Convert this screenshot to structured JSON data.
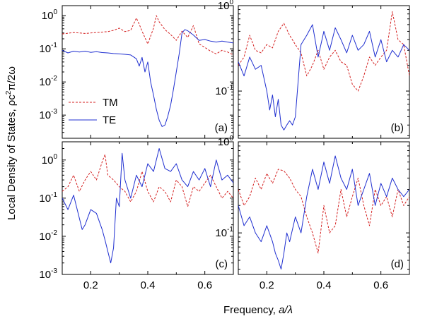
{
  "chart_data": {
    "type": "line",
    "xlabel": "Frequency, a/λ",
    "xlabel_parts": [
      "Frequency, ",
      "a/λ"
    ],
    "ylabel": "Local Density of States, ρc²π/2ω",
    "ylabel_parts": [
      "Local Density of States, ρc",
      "2",
      "π/2ω"
    ],
    "xlim": [
      0.1,
      0.7
    ],
    "xticks": [
      "0.2",
      "0.4",
      "0.6"
    ],
    "legend": {
      "location": "left",
      "entries": [
        "TM",
        "TE"
      ]
    },
    "series_styles": [
      {
        "name": "TM",
        "color": "#d42020",
        "dash": "dashed"
      },
      {
        "name": "TE",
        "color": "#1f2fd0",
        "dash": "solid"
      }
    ],
    "panels": [
      {
        "label": "(a)",
        "yscale": "log",
        "ylim": [
          0.0002,
          2
        ],
        "yticks": [
          {
            "value": 1,
            "label": "10",
            "exp": "0"
          },
          {
            "value": 0.1,
            "label": "10",
            "exp": "-1"
          },
          {
            "value": 0.01,
            "label": "10",
            "exp": "-2"
          },
          {
            "value": 0.001,
            "label": "10",
            "exp": "-3"
          }
        ],
        "series": [
          {
            "name": "TM",
            "x": [
              0.1,
              0.14,
              0.18,
              0.22,
              0.26,
              0.28,
              0.3,
              0.32,
              0.34,
              0.35,
              0.36,
              0.37,
              0.38,
              0.4,
              0.42,
              0.43,
              0.44,
              0.46,
              0.48,
              0.5,
              0.52,
              0.54,
              0.56,
              0.58,
              0.6,
              0.62,
              0.64,
              0.66,
              0.68,
              0.7
            ],
            "y": [
              0.28,
              0.31,
              0.29,
              0.31,
              0.33,
              0.36,
              0.42,
              0.33,
              0.36,
              0.55,
              0.85,
              0.55,
              0.34,
              0.14,
              0.42,
              1.0,
              0.65,
              0.38,
              0.27,
              0.18,
              0.34,
              0.22,
              0.5,
              0.14,
              0.11,
              0.085,
              0.07,
              0.09,
              0.08,
              0.065
            ]
          },
          {
            "name": "TE",
            "x": [
              0.1,
              0.12,
              0.14,
              0.16,
              0.18,
              0.2,
              0.22,
              0.24,
              0.26,
              0.28,
              0.3,
              0.32,
              0.34,
              0.36,
              0.37,
              0.38,
              0.39,
              0.4,
              0.41,
              0.42,
              0.43,
              0.44,
              0.45,
              0.46,
              0.47,
              0.48,
              0.49,
              0.5,
              0.51,
              0.52,
              0.53,
              0.54,
              0.56,
              0.58,
              0.6,
              0.62,
              0.64,
              0.66,
              0.68,
              0.7
            ],
            "y": [
              0.09,
              0.075,
              0.085,
              0.08,
              0.085,
              0.078,
              0.082,
              0.077,
              0.075,
              0.072,
              0.07,
              0.068,
              0.065,
              0.05,
              0.03,
              0.055,
              0.02,
              0.04,
              0.01,
              0.004,
              0.0015,
              0.0007,
              0.00045,
              0.0005,
              0.0009,
              0.002,
              0.006,
              0.02,
              0.07,
              0.3,
              0.38,
              0.35,
              0.26,
              0.18,
              0.19,
              0.17,
              0.16,
              0.17,
              0.16,
              0.15
            ]
          }
        ]
      },
      {
        "label": "(b)",
        "yscale": "log",
        "ylim": [
          0.028,
          1
        ],
        "yticks": [
          {
            "value": 1,
            "label": "10",
            "exp": "0"
          },
          {
            "value": 0.1,
            "label": "10",
            "exp": "-1"
          }
        ],
        "series": [
          {
            "name": "TM",
            "x": [
              0.1,
              0.12,
              0.14,
              0.16,
              0.18,
              0.2,
              0.22,
              0.24,
              0.26,
              0.28,
              0.3,
              0.32,
              0.34,
              0.36,
              0.38,
              0.4,
              0.42,
              0.44,
              0.46,
              0.48,
              0.5,
              0.52,
              0.54,
              0.56,
              0.58,
              0.6,
              0.62,
              0.64,
              0.66,
              0.68,
              0.7
            ],
            "y": [
              0.2,
              0.25,
              0.45,
              0.3,
              0.28,
              0.35,
              0.32,
              0.5,
              0.62,
              0.45,
              0.35,
              0.28,
              0.15,
              0.2,
              0.3,
              0.18,
              0.25,
              0.3,
              0.22,
              0.2,
              0.12,
              0.1,
              0.15,
              0.25,
              0.2,
              0.25,
              0.3,
              0.85,
              0.4,
              0.35,
              0.15
            ]
          },
          {
            "name": "TE",
            "x": [
              0.1,
              0.12,
              0.14,
              0.16,
              0.18,
              0.2,
              0.21,
              0.22,
              0.23,
              0.24,
              0.25,
              0.26,
              0.27,
              0.28,
              0.29,
              0.3,
              0.32,
              0.34,
              0.36,
              0.38,
              0.4,
              0.42,
              0.44,
              0.46,
              0.48,
              0.5,
              0.52,
              0.54,
              0.56,
              0.58,
              0.6,
              0.62,
              0.64,
              0.66,
              0.68,
              0.7
            ],
            "y": [
              0.22,
              0.15,
              0.25,
              0.18,
              0.2,
              0.1,
              0.06,
              0.09,
              0.05,
              0.08,
              0.04,
              0.035,
              0.04,
              0.045,
              0.04,
              0.05,
              0.35,
              0.45,
              0.6,
              0.25,
              0.5,
              0.3,
              0.55,
              0.4,
              0.28,
              0.45,
              0.3,
              0.35,
              0.5,
              0.25,
              0.4,
              0.22,
              0.3,
              0.25,
              0.35,
              0.3
            ]
          }
        ]
      },
      {
        "label": "(c)",
        "yscale": "log",
        "ylim": [
          0.001,
          3
        ],
        "yticks": [
          {
            "value": 1,
            "label": "10",
            "exp": "0"
          },
          {
            "value": 0.1,
            "label": "10",
            "exp": "-1"
          },
          {
            "value": 0.01,
            "label": "10",
            "exp": "-2"
          },
          {
            "value": 0.001,
            "label": "10",
            "exp": "-3"
          }
        ],
        "series": [
          {
            "name": "TM",
            "x": [
              0.1,
              0.12,
              0.14,
              0.16,
              0.18,
              0.2,
              0.22,
              0.24,
              0.25,
              0.26,
              0.28,
              0.3,
              0.32,
              0.34,
              0.36,
              0.38,
              0.4,
              0.42,
              0.44,
              0.46,
              0.48,
              0.5,
              0.52,
              0.54,
              0.56,
              0.58,
              0.6,
              0.62,
              0.64,
              0.66,
              0.68,
              0.7
            ],
            "y": [
              0.15,
              0.2,
              0.4,
              0.15,
              0.3,
              0.5,
              0.3,
              0.9,
              1.4,
              0.4,
              0.3,
              0.2,
              0.15,
              0.08,
              0.15,
              0.5,
              0.15,
              0.08,
              0.2,
              0.15,
              0.08,
              0.3,
              0.2,
              0.06,
              0.2,
              0.15,
              0.25,
              0.4,
              0.2,
              0.1,
              0.15,
              0.1
            ]
          },
          {
            "name": "TE",
            "x": [
              0.1,
              0.12,
              0.14,
              0.16,
              0.17,
              0.18,
              0.2,
              0.22,
              0.24,
              0.25,
              0.26,
              0.27,
              0.28,
              0.29,
              0.3,
              0.31,
              0.32,
              0.34,
              0.36,
              0.38,
              0.4,
              0.42,
              0.44,
              0.46,
              0.48,
              0.5,
              0.52,
              0.54,
              0.56,
              0.58,
              0.6,
              0.62,
              0.64,
              0.66,
              0.68,
              0.7
            ],
            "y": [
              0.1,
              0.05,
              0.12,
              0.03,
              0.015,
              0.02,
              0.05,
              0.04,
              0.015,
              0.008,
              0.004,
              0.002,
              0.005,
              0.1,
              0.06,
              1.5,
              0.3,
              0.1,
              0.4,
              0.2,
              0.8,
              0.5,
              2,
              0.6,
              0.5,
              0.8,
              0.3,
              0.2,
              0.5,
              0.3,
              0.6,
              0.2,
              1.0,
              0.3,
              0.4,
              0.25
            ]
          }
        ]
      },
      {
        "label": "(d)",
        "yscale": "log",
        "ylim": [
          0.035,
          1
        ],
        "yticks": [
          {
            "value": 1,
            "label": "10",
            "exp": "0"
          },
          {
            "value": 0.1,
            "label": "10",
            "exp": "-1"
          }
        ],
        "series": [
          {
            "name": "TM",
            "x": [
              0.1,
              0.12,
              0.14,
              0.16,
              0.18,
              0.2,
              0.22,
              0.24,
              0.26,
              0.28,
              0.3,
              0.32,
              0.34,
              0.36,
              0.38,
              0.4,
              0.42,
              0.44,
              0.46,
              0.48,
              0.5,
              0.52,
              0.54,
              0.56,
              0.58,
              0.6,
              0.62,
              0.64,
              0.66,
              0.68,
              0.7
            ],
            "y": [
              0.3,
              0.2,
              0.25,
              0.4,
              0.3,
              0.45,
              0.35,
              0.5,
              0.48,
              0.4,
              0.3,
              0.25,
              0.15,
              0.1,
              0.06,
              0.2,
              0.1,
              0.12,
              0.3,
              0.15,
              0.25,
              0.4,
              0.2,
              0.12,
              0.3,
              0.2,
              0.25,
              0.15,
              0.3,
              0.2,
              0.25
            ]
          },
          {
            "name": "TE",
            "x": [
              0.1,
              0.12,
              0.14,
              0.16,
              0.18,
              0.2,
              0.22,
              0.23,
              0.24,
              0.25,
              0.26,
              0.27,
              0.28,
              0.3,
              0.32,
              0.34,
              0.36,
              0.38,
              0.4,
              0.42,
              0.44,
              0.46,
              0.48,
              0.5,
              0.52,
              0.54,
              0.56,
              0.58,
              0.6,
              0.62,
              0.64,
              0.66,
              0.68,
              0.7
            ],
            "y": [
              0.2,
              0.12,
              0.15,
              0.1,
              0.08,
              0.12,
              0.08,
              0.06,
              0.05,
              0.04,
              0.06,
              0.1,
              0.08,
              0.15,
              0.1,
              0.25,
              0.5,
              0.3,
              0.6,
              0.35,
              0.7,
              0.4,
              0.3,
              0.5,
              0.2,
              0.3,
              0.45,
              0.2,
              0.35,
              0.25,
              0.4,
              0.3,
              0.25,
              0.3
            ]
          }
        ]
      }
    ]
  }
}
